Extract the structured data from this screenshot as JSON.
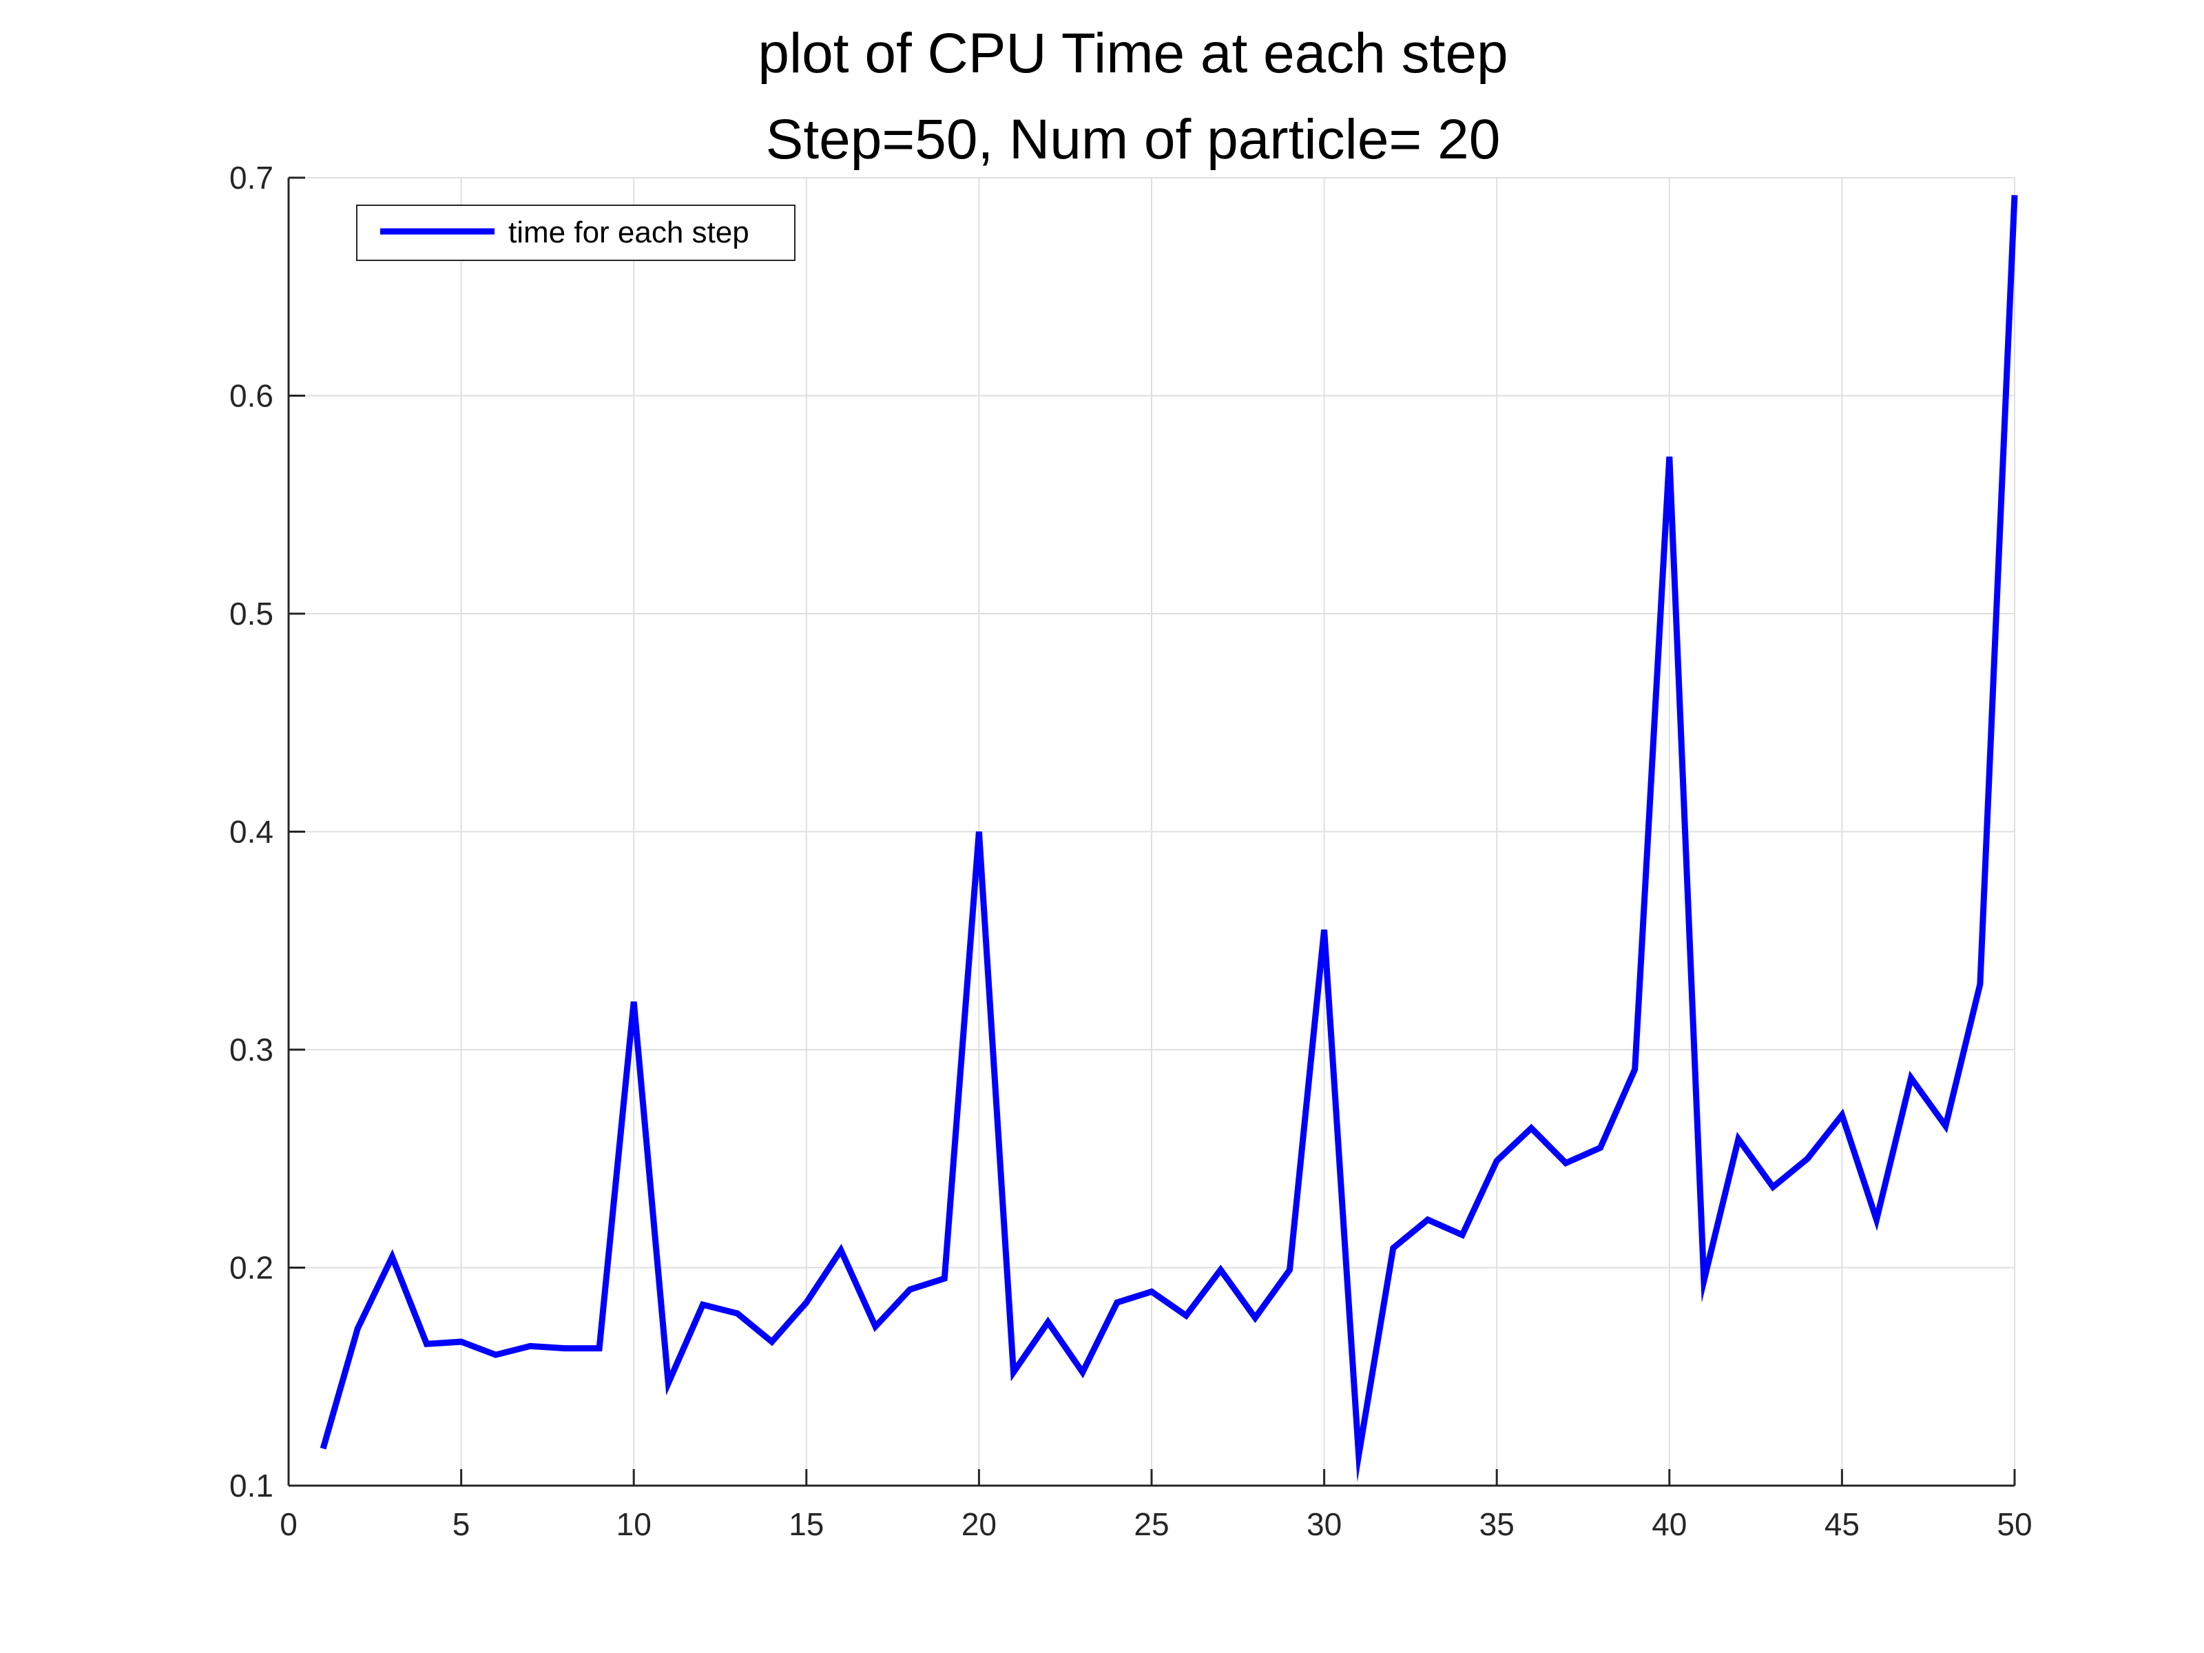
{
  "chart_data": {
    "type": "line",
    "title": "plot of CPU Time at each step",
    "subtitle": "Step=50, Num of particle= 20",
    "xlabel": "",
    "ylabel": "",
    "xlim": [
      0,
      50
    ],
    "ylim": [
      0.1,
      0.7
    ],
    "xticks": [
      0,
      5,
      10,
      15,
      20,
      25,
      30,
      35,
      40,
      45,
      50
    ],
    "yticks": [
      0.1,
      0.2,
      0.3,
      0.4,
      0.5,
      0.6,
      0.7
    ],
    "xtick_labels": [
      "0",
      "5",
      "10",
      "15",
      "20",
      "25",
      "30",
      "35",
      "40",
      "45",
      "50"
    ],
    "ytick_labels": [
      "0.1",
      "0.2",
      "0.3",
      "0.4",
      "0.5",
      "0.6",
      "0.7"
    ],
    "grid": true,
    "legend_position": "top-left",
    "series": [
      {
        "name": "time for each step",
        "color": "#0000ff",
        "x": [
          1,
          2,
          3,
          4,
          5,
          6,
          7,
          8,
          9,
          10,
          11,
          12,
          13,
          14,
          15,
          16,
          17,
          18,
          19,
          20,
          21,
          22,
          23,
          24,
          25,
          26,
          27,
          28,
          29,
          30,
          31,
          32,
          33,
          34,
          35,
          36,
          37,
          38,
          39,
          40,
          41,
          42,
          43,
          44,
          45,
          46,
          47,
          48,
          49,
          50
        ],
        "y": [
          0.117,
          0.172,
          0.205,
          0.165,
          0.166,
          0.16,
          0.164,
          0.163,
          0.163,
          0.322,
          0.147,
          0.183,
          0.179,
          0.166,
          0.184,
          0.208,
          0.173,
          0.19,
          0.195,
          0.4,
          0.152,
          0.175,
          0.152,
          0.184,
          0.189,
          0.178,
          0.199,
          0.177,
          0.199,
          0.355,
          0.114,
          0.209,
          0.222,
          0.215,
          0.249,
          0.264,
          0.248,
          0.255,
          0.291,
          0.572,
          0.194,
          0.259,
          0.237,
          0.25,
          0.27,
          0.222,
          0.287,
          0.265,
          0.33,
          0.692
        ]
      }
    ]
  }
}
